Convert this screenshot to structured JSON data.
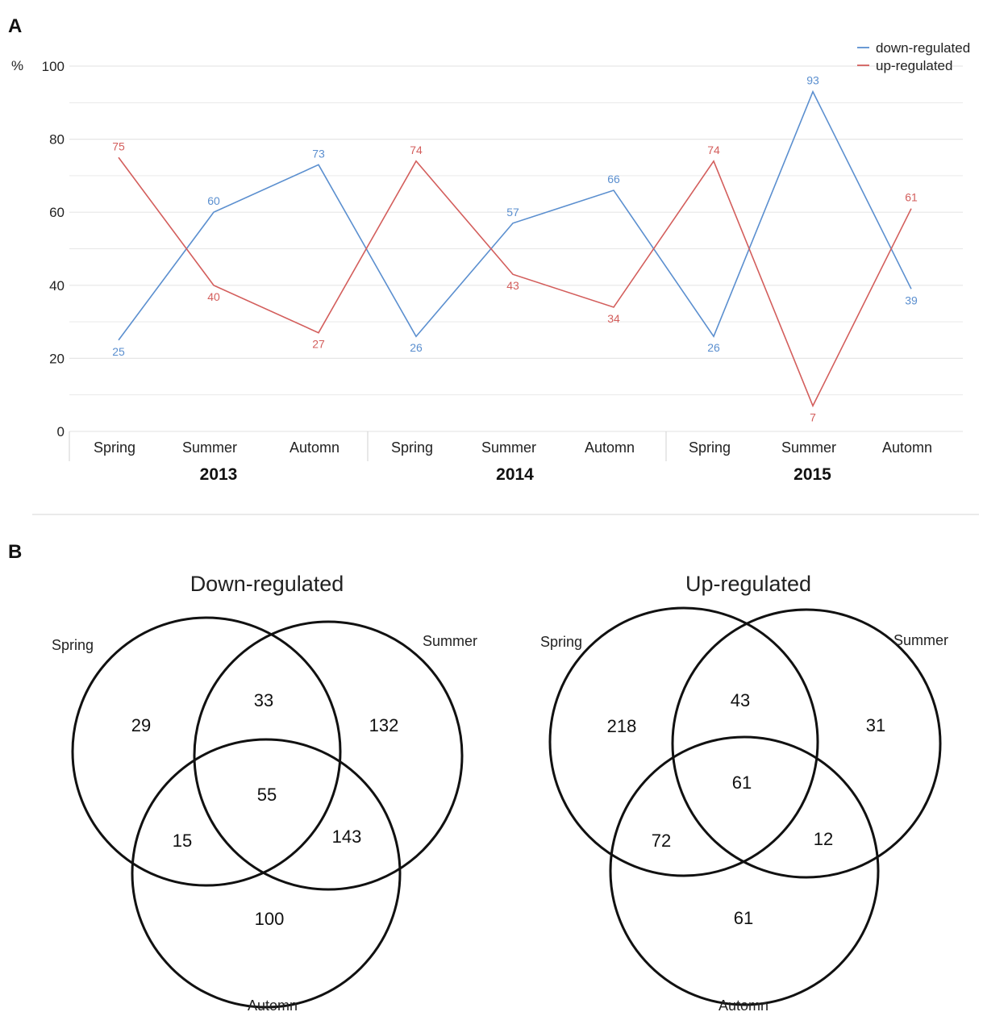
{
  "panels": {
    "a_label": "A",
    "b_label": "B"
  },
  "colors": {
    "down": "#5b8fcf",
    "up": "#d35e5c",
    "grid": "#e6e6e6",
    "axis_text": "#222222"
  },
  "chart_data": [
    {
      "type": "line",
      "ylabel": "%",
      "ylim": [
        0,
        100
      ],
      "yticks": [
        0,
        20,
        40,
        60,
        80,
        100
      ],
      "grid": true,
      "legend_position": "top-right",
      "categories": [
        "Spring",
        "Summer",
        "Automn",
        "Spring",
        "Summer",
        "Automn",
        "Spring",
        "Summer",
        "Automn"
      ],
      "groups": [
        {
          "label": "2013",
          "span": [
            0,
            2
          ]
        },
        {
          "label": "2014",
          "span": [
            3,
            5
          ]
        },
        {
          "label": "2015",
          "span": [
            6,
            8
          ]
        }
      ],
      "series": [
        {
          "name": "down-regulated",
          "color": "#5b8fcf",
          "values": [
            25,
            60,
            73,
            26,
            57,
            66,
            26,
            93,
            39
          ]
        },
        {
          "name": "up-regulated",
          "color": "#d35e5c",
          "values": [
            75,
            40,
            27,
            74,
            43,
            34,
            74,
            7,
            61
          ]
        }
      ]
    },
    {
      "type": "venn",
      "title": "Down-regulated",
      "sets": [
        "Spring",
        "Summer",
        "Automn"
      ],
      "regions": {
        "spring_only": "29",
        "summer_only": "132",
        "automn_only": "100",
        "spring_summer": "33",
        "spring_automn": "15",
        "summer_automn": "143",
        "all": "55"
      }
    },
    {
      "type": "venn",
      "title": "Up-regulated",
      "sets": [
        "Spring",
        "Summer",
        "Automn"
      ],
      "regions": {
        "spring_only": "218",
        "summer_only": "31",
        "automn_only": "61",
        "spring_summer": "43",
        "spring_automn": "72",
        "summer_automn": "12",
        "all": "61"
      }
    }
  ]
}
